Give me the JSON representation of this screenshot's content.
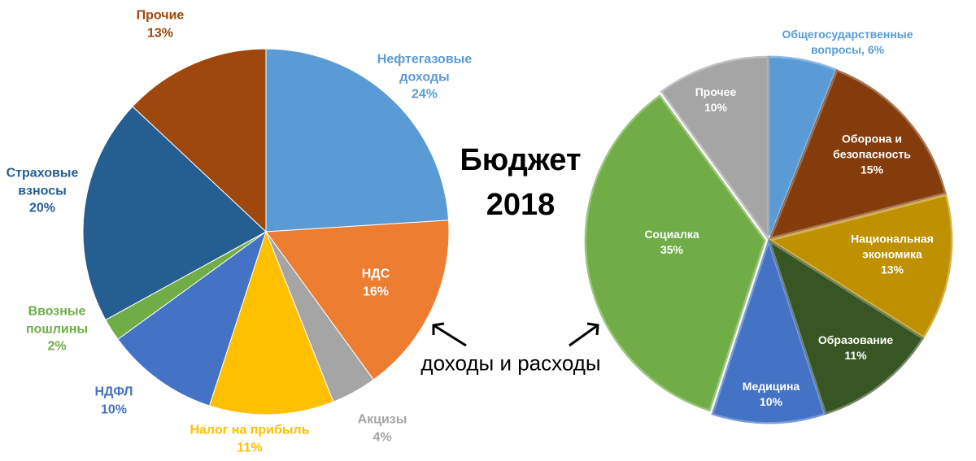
{
  "title": "Бюджет 2018",
  "annotation": "доходы и расходы",
  "chart_data": [
    {
      "type": "pie",
      "categories": [
        "Нефтегазовые доходы",
        "НДС",
        "Акцизы",
        "Налог на прибыль",
        "НДФЛ",
        "Ввозные пошлины",
        "Страховые взносы",
        "Прочие"
      ],
      "values": [
        24,
        16,
        4,
        11,
        10,
        2,
        20,
        13
      ],
      "value_labels": [
        "24%",
        "16%",
        "4%",
        "11%",
        "10%",
        "2%",
        "20%",
        "13%"
      ],
      "colors": [
        "#5b9bd5",
        "#ed7d31",
        "#a5a5a5",
        "#ffc000",
        "#4472c4",
        "#70ad47",
        "#255e91",
        "#9e480e"
      ]
    },
    {
      "type": "pie",
      "categories": [
        "Общегосударственные вопросы,",
        "Оборона и безопасность",
        "Национальная экономика",
        "Образование",
        "Медицина",
        "Социалка",
        "Прочее"
      ],
      "values": [
        6,
        15,
        13,
        11,
        10,
        35,
        10
      ],
      "value_labels": [
        "6%",
        "15%",
        "13%",
        "11%",
        "10%",
        "35%",
        "10%"
      ],
      "colors": [
        "#5b9bd5",
        "#843c0c",
        "#bf9000",
        "#375623",
        "#4472c4",
        "#70ad47",
        "#a5a5a5"
      ]
    }
  ]
}
